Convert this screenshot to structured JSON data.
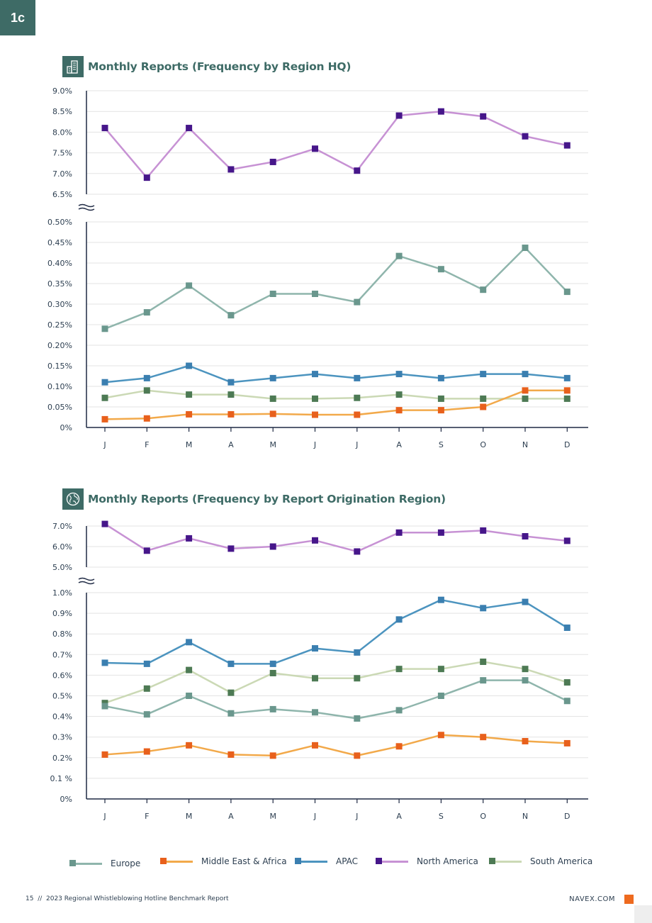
{
  "page_tag": "1c",
  "colors": {
    "Europe": "#8fb5ac",
    "Middle East & Africa": "#f2a94a",
    "APAC": "#4c94bf",
    "North America": "#c792d4",
    "South America": "#cbd9b5",
    "marker_Europe": "#6a978d",
    "marker_Middle East & Africa": "#e8601c",
    "marker_APAC": "#3b7fb0",
    "marker_North America": "#46168a",
    "marker_South America": "#4d7a54",
    "axis": "#1f2a44",
    "grid": "#e3e3e3",
    "brand": "#3e6b66"
  },
  "chart_data": [
    {
      "type": "line",
      "title": "Monthly Reports (Frequency by Region HQ)",
      "categories": [
        "J",
        "F",
        "M",
        "A",
        "M",
        "J",
        "J",
        "A",
        "S",
        "O",
        "N",
        "D"
      ],
      "axis_break": true,
      "upper_yticks": [
        "9.0%",
        "8.5%",
        "8.0%",
        "7.5%",
        "7.0%",
        "6.5%"
      ],
      "upper_ylim": [
        6.5,
        9.0
      ],
      "lower_yticks": [
        "0.50%",
        "0.45%",
        "0.40%",
        "0.35%",
        "0.30%",
        "0.25%",
        "0.20%",
        "0.15%",
        "0.10%",
        "0.05%",
        "0%"
      ],
      "lower_ylim": [
        0,
        0.5
      ],
      "grid": true,
      "series": [
        {
          "name": "North America",
          "panel": "upper",
          "values": [
            8.1,
            6.9,
            8.1,
            7.1,
            7.28,
            7.6,
            7.07,
            8.4,
            8.5,
            8.38,
            7.9,
            7.68
          ]
        },
        {
          "name": "Europe",
          "panel": "lower",
          "values": [
            0.24,
            0.28,
            0.345,
            0.273,
            0.325,
            0.325,
            0.305,
            0.417,
            0.385,
            0.335,
            0.437,
            0.33
          ]
        },
        {
          "name": "APAC",
          "panel": "lower",
          "values": [
            0.11,
            0.12,
            0.15,
            0.11,
            0.12,
            0.13,
            0.12,
            0.13,
            0.12,
            0.13,
            0.13,
            0.12
          ]
        },
        {
          "name": "South America",
          "panel": "lower",
          "values": [
            0.072,
            0.09,
            0.08,
            0.08,
            0.07,
            0.07,
            0.072,
            0.08,
            0.07,
            0.07,
            0.07,
            0.07
          ]
        },
        {
          "name": "Middle East & Africa",
          "panel": "lower",
          "values": [
            0.02,
            0.022,
            0.032,
            0.032,
            0.033,
            0.031,
            0.031,
            0.042,
            0.042,
            0.05,
            0.09,
            0.09
          ]
        }
      ]
    },
    {
      "type": "line",
      "title": "Monthly Reports (Frequency by Report Origination Region)",
      "categories": [
        "J",
        "F",
        "M",
        "A",
        "M",
        "J",
        "J",
        "A",
        "S",
        "O",
        "N",
        "D"
      ],
      "axis_break": true,
      "upper_yticks": [
        "7.0%",
        "6.0%",
        "5.0%"
      ],
      "upper_ylim": [
        5.0,
        7.0
      ],
      "lower_yticks": [
        "1.0%",
        "0.9%",
        "0.8%",
        "0.7%",
        "0.6%",
        "0.5%",
        "0.4%",
        "0.3%",
        "0.2%",
        "0.1 %",
        "0%"
      ],
      "lower_ylim": [
        0,
        1.0
      ],
      "grid": true,
      "series": [
        {
          "name": "North America",
          "panel": "upper",
          "values": [
            7.1,
            5.8,
            6.4,
            5.9,
            6.0,
            6.3,
            5.76,
            6.68,
            6.68,
            6.78,
            6.5,
            6.28
          ]
        },
        {
          "name": "APAC",
          "panel": "lower",
          "values": [
            0.66,
            0.655,
            0.76,
            0.655,
            0.655,
            0.73,
            0.71,
            0.87,
            0.965,
            0.925,
            0.955,
            0.83
          ]
        },
        {
          "name": "South America",
          "panel": "lower",
          "values": [
            0.465,
            0.535,
            0.625,
            0.515,
            0.61,
            0.585,
            0.585,
            0.63,
            0.63,
            0.665,
            0.63,
            0.565
          ]
        },
        {
          "name": "Europe",
          "panel": "lower",
          "values": [
            0.45,
            0.41,
            0.5,
            0.415,
            0.435,
            0.42,
            0.39,
            0.43,
            0.5,
            0.575,
            0.575,
            0.475
          ]
        },
        {
          "name": "Middle East & Africa",
          "panel": "lower",
          "values": [
            0.215,
            0.23,
            0.26,
            0.215,
            0.21,
            0.26,
            0.21,
            0.255,
            0.31,
            0.3,
            0.28,
            0.27
          ]
        }
      ]
    }
  ],
  "legend": [
    {
      "name": "Europe",
      "label": "Europe"
    },
    {
      "name": "Middle East & Africa",
      "label": "Middle East & Africa"
    },
    {
      "name": "APAC",
      "label": "APAC"
    },
    {
      "name": "North America",
      "label": "North America"
    },
    {
      "name": "South America",
      "label": "South America"
    }
  ],
  "footer": {
    "page_number": "15",
    "separator": "//",
    "report_title": "2023 Regional Whistleblowing Hotline Benchmark Report",
    "brand": "NAVEX.COM"
  }
}
